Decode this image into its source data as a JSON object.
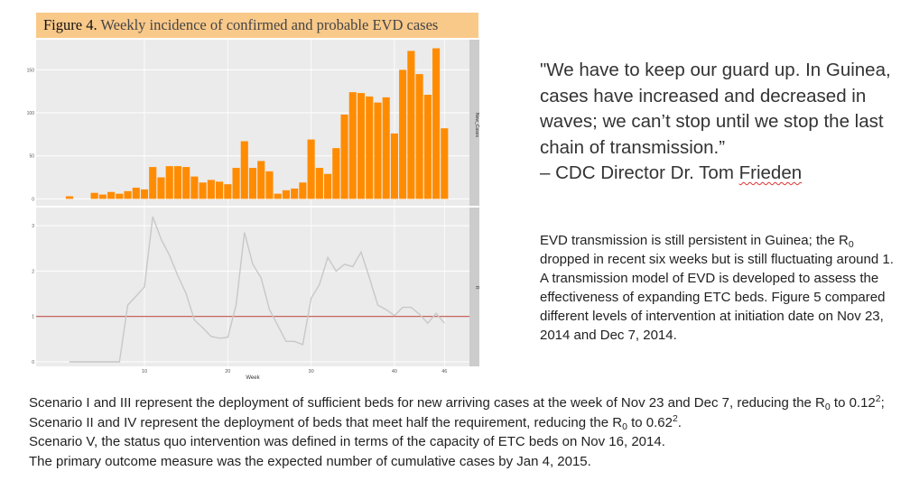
{
  "figure": {
    "label": "Figure 4.",
    "title": "Weekly incidence of confirmed and probable EVD cases"
  },
  "quote": {
    "text": "\"We have to keep our guard up. In Guinea, cases have increased and decreased in waves; we can’t stop until we stop the last chain of transmission.”",
    "attribution_prefix": "– CDC Director Dr. Tom ",
    "attribution_name": "Frieden"
  },
  "description": {
    "p1_before": "EVD transmission is still persistent in Guinea; the R",
    "p1_sub": "0",
    "p1_after": " dropped in recent six weeks but is still fluctuating around 1.",
    "p2": "A transmission model of EVD is developed to assess the effectiveness of expanding ETC beds. Figure 5 compared different levels of intervention at initiation date on Nov 23, 2014 and Dec 7, 2014."
  },
  "bottom": {
    "l1_a": "Scenario I and III represent the deployment of sufficient beds for new arriving cases at the week of Nov 23 and Dec 7, reducing the R",
    "l1_sub": "0",
    "l1_b": " to 0.12",
    "l1_sup": "2",
    "l1_c": "; Scenario II and IV represent the deployment of beds that meet half the requirement, reducing the R",
    "l1_sub2": "0",
    "l1_d": " to 0.62",
    "l1_sup2": "2",
    "l1_e": ".",
    "l2": "Scenario V, the status quo intervention was defined in terms of the capacity of ETC beds on Nov 16, 2014.",
    "l3": "The primary outcome measure was the expected number of cumulative cases by Jan 4, 2015."
  },
  "chart_data": [
    {
      "type": "bar",
      "panel_label": "New_Cases",
      "bar_color": "#ff8c00",
      "x": [
        1,
        2,
        3,
        4,
        5,
        6,
        7,
        8,
        9,
        10,
        11,
        12,
        13,
        14,
        15,
        16,
        17,
        18,
        19,
        20,
        21,
        22,
        23,
        24,
        25,
        26,
        27,
        28,
        29,
        30,
        31,
        32,
        33,
        34,
        35,
        36,
        37,
        38,
        39,
        40,
        41,
        42,
        43,
        44,
        45,
        46
      ],
      "values": [
        3,
        0,
        0,
        7,
        5,
        8,
        6,
        9,
        13,
        11,
        37,
        25,
        38,
        38,
        37,
        26,
        19,
        22,
        20,
        17,
        36,
        67,
        36,
        44,
        32,
        6,
        10,
        12,
        19,
        69,
        36,
        29,
        59,
        98,
        124,
        123,
        119,
        112,
        118,
        76,
        150,
        172,
        145,
        121,
        175,
        82
      ],
      "yticks": [
        0,
        50,
        100,
        150
      ],
      "ylim": [
        -8,
        185
      ],
      "grid": true
    },
    {
      "type": "line",
      "panel_label": "R",
      "line_color": "#c8c8c8",
      "reference_line": 1,
      "reference_color": "#c0504d",
      "x": [
        1,
        2,
        3,
        4,
        5,
        6,
        7,
        8,
        9,
        10,
        11,
        12,
        13,
        14,
        15,
        16,
        17,
        18,
        19,
        20,
        21,
        22,
        23,
        24,
        25,
        26,
        27,
        28,
        29,
        30,
        31,
        32,
        33,
        34,
        35,
        36,
        37,
        38,
        39,
        40,
        41,
        42,
        43,
        44,
        45,
        46
      ],
      "values": [
        0,
        0,
        0,
        0,
        0,
        0,
        0,
        1.25,
        1.45,
        1.65,
        3.2,
        2.7,
        2.35,
        1.9,
        1.5,
        0.92,
        0.75,
        0.56,
        0.52,
        0.54,
        1.25,
        2.85,
        2.15,
        1.85,
        1.15,
        0.8,
        0.45,
        0.45,
        0.38,
        1.4,
        1.7,
        2.3,
        2.0,
        2.15,
        2.1,
        2.42,
        1.85,
        1.25,
        1.15,
        1.02,
        1.2,
        1.2,
        1.05,
        0.85,
        1.07,
        0.85
      ],
      "yticks": [
        0,
        1,
        2,
        3
      ],
      "ylim": [
        -0.1,
        3.4
      ],
      "xticks": [
        10,
        20,
        30,
        40,
        46
      ],
      "xlim": [
        -3,
        49
      ],
      "xlabel": "Week",
      "grid": true
    }
  ]
}
